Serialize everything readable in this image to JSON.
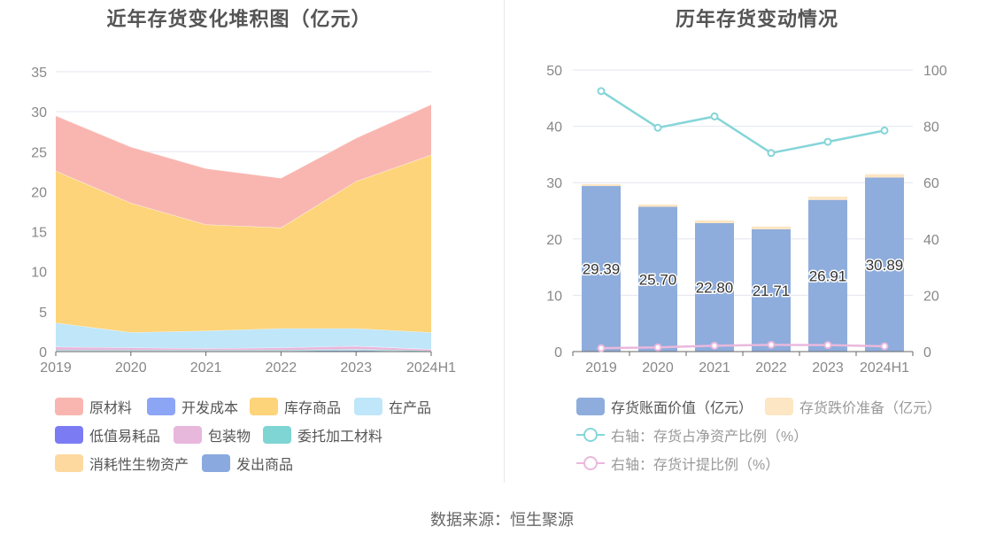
{
  "source": "数据来源：恒生聚源",
  "colors": {
    "raw": "#f9b6b1",
    "dev": "#8ca5f5",
    "goods": "#fdd47a",
    "wip": "#bfe6f9",
    "lowvalue": "#7b7cf3",
    "pack": "#e8b7dc",
    "consign": "#7fd4d4",
    "bio": "#fdd9a0",
    "shipped": "#8aaadf",
    "book": "#8eaddc",
    "provision": "#fde6c4",
    "ratio_net": "#85d5d9",
    "ratio_prov": "#eab8dd",
    "grid": "#e3e6f0",
    "axis_text": "#888888"
  },
  "chart_data": [
    {
      "type": "area",
      "title": "近年存货变化堆积图（亿元）",
      "categories": [
        "2019",
        "2020",
        "2021",
        "2022",
        "2023",
        "2024H1"
      ],
      "ylim": [
        0,
        35
      ],
      "yticks": [
        0,
        5,
        10,
        15,
        20,
        25,
        30,
        35
      ],
      "stacked": true,
      "legend_position": "bottom",
      "series": [
        {
          "name": "原材料",
          "key": "raw",
          "values": [
            6.9,
            7.0,
            7.0,
            6.2,
            5.4,
            6.3
          ]
        },
        {
          "name": "开发成本",
          "key": "dev",
          "values": [
            0,
            0,
            0,
            0,
            0,
            0
          ]
        },
        {
          "name": "库存商品",
          "key": "goods",
          "values": [
            19.0,
            16.2,
            13.3,
            12.6,
            18.4,
            22.2
          ]
        },
        {
          "name": "在产品",
          "key": "wip",
          "values": [
            3.0,
            1.9,
            2.2,
            2.4,
            2.2,
            2.1
          ]
        },
        {
          "name": "低值易耗品",
          "key": "lowvalue",
          "values": [
            0,
            0,
            0,
            0,
            0,
            0
          ]
        },
        {
          "name": "包装物",
          "key": "pack",
          "values": [
            0.4,
            0.3,
            0.2,
            0.3,
            0.4,
            0.2
          ]
        },
        {
          "name": "委托加工材料",
          "key": "consign",
          "values": [
            0.1,
            0.1,
            0.1,
            0.1,
            0.1,
            0.1
          ]
        },
        {
          "name": "消耗性生物资产",
          "key": "bio",
          "values": [
            0,
            0,
            0,
            0,
            0,
            0
          ]
        },
        {
          "name": "发出商品",
          "key": "shipped",
          "values": [
            0.1,
            0.1,
            0.1,
            0.1,
            0.2,
            0.0
          ]
        }
      ]
    },
    {
      "type": "bar",
      "title": "历年存货变动情况",
      "categories": [
        "2019",
        "2020",
        "2021",
        "2022",
        "2023",
        "2024H1"
      ],
      "ylim": [
        0,
        50
      ],
      "yticks": [
        0,
        10,
        20,
        30,
        40,
        50
      ],
      "y2lim": [
        0,
        100
      ],
      "y2ticks": [
        0,
        20,
        40,
        60,
        80,
        100
      ],
      "legend_position": "bottom",
      "series": [
        {
          "name": "存货账面价值（亿元）",
          "key": "book",
          "kind": "bar",
          "axis": "left",
          "values": [
            29.39,
            25.7,
            22.8,
            21.71,
            26.91,
            30.89
          ],
          "labels": [
            "29.39",
            "25.70",
            "22.80",
            "21.71",
            "26.91",
            "30.89"
          ]
        },
        {
          "name": "存货跌价准备（亿元）",
          "key": "provision",
          "kind": "bar",
          "axis": "left",
          "values": [
            0.35,
            0.4,
            0.5,
            0.5,
            0.6,
            0.6
          ]
        },
        {
          "name": "右轴：存货占净资产比例（%）",
          "key": "ratio_net",
          "kind": "line",
          "axis": "right",
          "values": [
            92.5,
            79.5,
            83.5,
            70.5,
            74.5,
            78.5
          ]
        },
        {
          "name": "右轴：存货计提比例（%）",
          "key": "ratio_prov",
          "kind": "line",
          "axis": "right",
          "values": [
            1.2,
            1.5,
            2.1,
            2.4,
            2.3,
            1.9
          ]
        }
      ]
    }
  ]
}
